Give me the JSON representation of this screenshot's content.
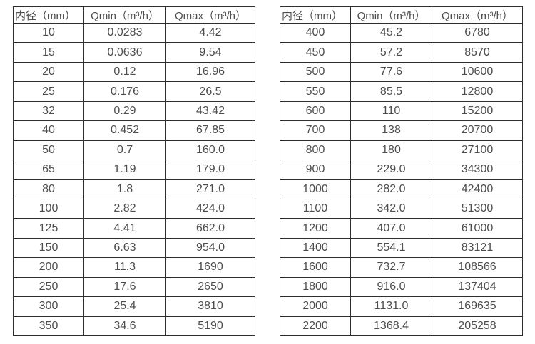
{
  "colors": {
    "border": "#2e2e2e",
    "text": "#4d4d4d",
    "background": "#ffffff"
  },
  "chart_data": [
    {
      "type": "table",
      "name": "flow-rate-table-small-diameters",
      "columns": [
        "内径（mm）",
        "Qmin（m³/h）",
        "Qmax（m³/h）"
      ],
      "rows": [
        [
          "10",
          "0.0283",
          "4.42"
        ],
        [
          "15",
          "0.0636",
          "9.54"
        ],
        [
          "20",
          "0.12",
          "16.96"
        ],
        [
          "25",
          "0.176",
          "26.5"
        ],
        [
          "32",
          "0.29",
          "43.42"
        ],
        [
          "40",
          "0.452",
          "67.85"
        ],
        [
          "50",
          "0.7",
          "160.0"
        ],
        [
          "65",
          "1.19",
          "179.0"
        ],
        [
          "80",
          "1.8",
          "271.0"
        ],
        [
          "100",
          "2.82",
          "424.0"
        ],
        [
          "125",
          "4.41",
          "662.0"
        ],
        [
          "150",
          "6.63",
          "954.0"
        ],
        [
          "200",
          "11.3",
          "1690"
        ],
        [
          "250",
          "17.6",
          "2650"
        ],
        [
          "300",
          "25.4",
          "3810"
        ],
        [
          "350",
          "34.6",
          "5190"
        ]
      ]
    },
    {
      "type": "table",
      "name": "flow-rate-table-large-diameters",
      "columns": [
        "内径（mm）",
        "Qmin（m³/h）",
        "Qmax（m³/h）"
      ],
      "rows": [
        [
          "400",
          "45.2",
          "6780"
        ],
        [
          "450",
          "57.2",
          "8570"
        ],
        [
          "500",
          "77.6",
          "10600"
        ],
        [
          "550",
          "85.5",
          "12800"
        ],
        [
          "600",
          "110",
          "15200"
        ],
        [
          "700",
          "138",
          "20700"
        ],
        [
          "800",
          "180",
          "27100"
        ],
        [
          "900",
          "229.0",
          "34300"
        ],
        [
          "1000",
          "282.0",
          "42400"
        ],
        [
          "1100",
          "342.0",
          "51300"
        ],
        [
          "1200",
          "407.0",
          "61000"
        ],
        [
          "1400",
          "554.1",
          "83121"
        ],
        [
          "1600",
          "732.7",
          "108566"
        ],
        [
          "1800",
          "916.0",
          "137404"
        ],
        [
          "2000",
          "1131.0",
          "169635"
        ],
        [
          "2200",
          "1368.4",
          "205258"
        ]
      ]
    }
  ]
}
